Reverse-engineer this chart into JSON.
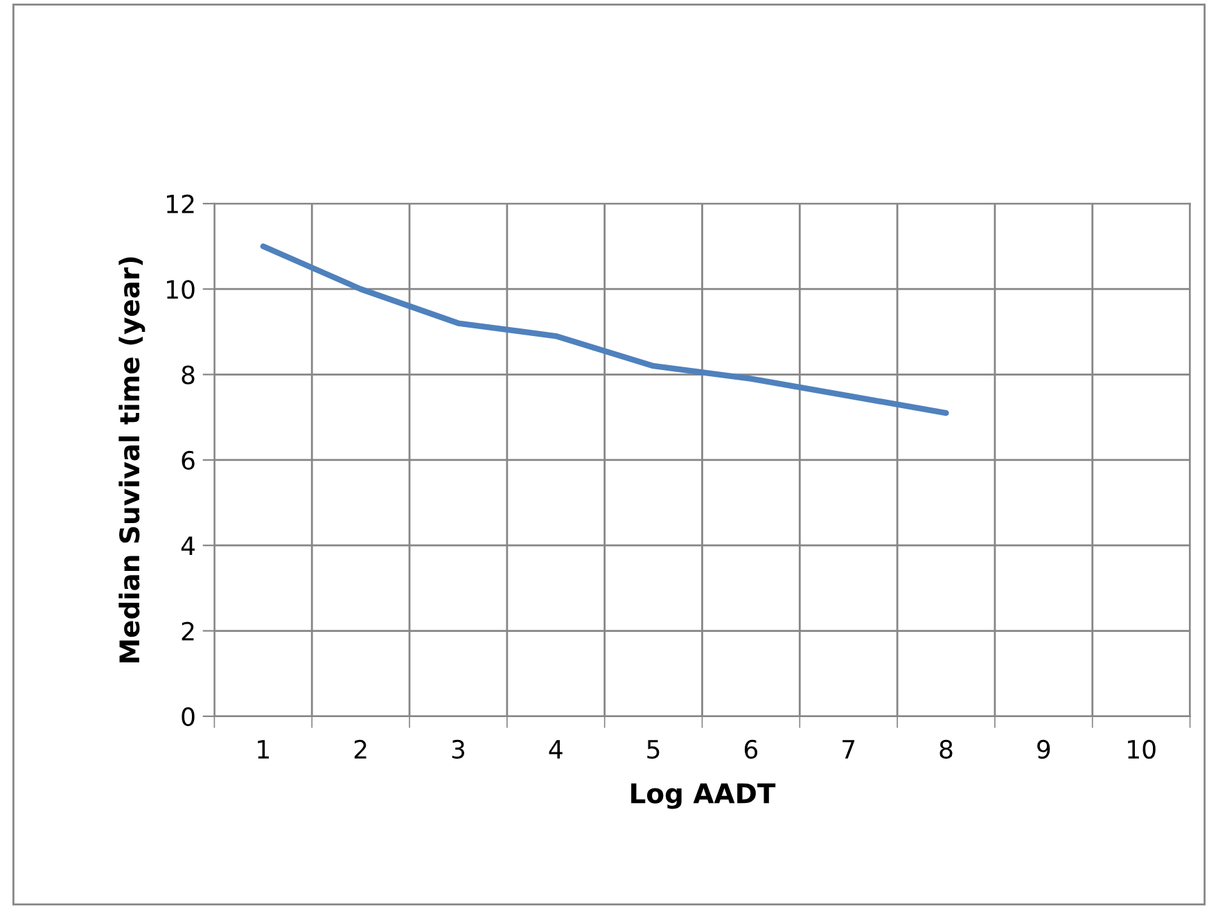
{
  "chart_data": {
    "type": "line",
    "xlabel": "Log AADT",
    "ylabel": "Median Suvival time (year)",
    "categories": [
      "1",
      "2",
      "3",
      "4",
      "5",
      "6",
      "7",
      "8",
      "9",
      "10"
    ],
    "series": [
      {
        "color": "#4f81bd",
        "values": [
          11,
          10,
          9.2,
          8.9,
          8.2,
          7.9,
          7.5,
          7.1,
          null,
          null
        ]
      }
    ],
    "ylim": [
      0,
      12
    ],
    "yticks": [
      0,
      2,
      4,
      6,
      8,
      10,
      12
    ],
    "grid": true,
    "legend": false,
    "marker": "none",
    "line_style": "solid"
  }
}
